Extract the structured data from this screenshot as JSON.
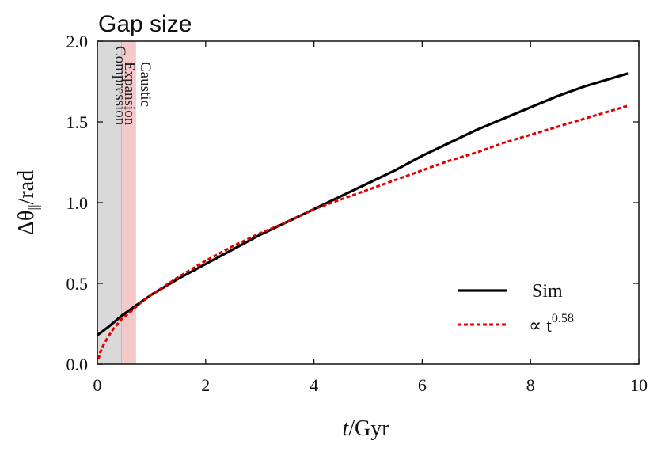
{
  "chart_data": {
    "type": "line",
    "title": "Gap size",
    "xlabel_var": "t",
    "xlabel_unit": "/Gyr",
    "ylabel_prefix": "Δθ",
    "ylabel_sub": "||",
    "ylabel_unit": "/rad",
    "xlim": [
      0,
      10
    ],
    "ylim": [
      0,
      2
    ],
    "xticks": [
      "0",
      "2",
      "4",
      "6",
      "8",
      "10"
    ],
    "yticks": [
      "0.0",
      "0.5",
      "1.0",
      "1.5",
      "2.0"
    ],
    "regions": [
      {
        "name": "Compression",
        "x0": 0.0,
        "x1": 0.45,
        "color": "#d9d9d9"
      },
      {
        "name": "Expansion",
        "x0": 0.45,
        "x1": 0.7,
        "color": "#f4c9c9"
      },
      {
        "name": "Caustic",
        "x0": 0.7,
        "x1": 0.7,
        "color": "#f4c9c9"
      }
    ],
    "series": [
      {
        "name": "Sim",
        "style": "solid",
        "color": "#000000",
        "x": [
          0.0,
          0.2,
          0.45,
          0.7,
          1.0,
          1.5,
          2.0,
          2.5,
          3.0,
          3.5,
          4.0,
          4.5,
          5.0,
          5.5,
          6.0,
          6.5,
          7.0,
          7.5,
          8.0,
          8.5,
          9.0,
          9.5,
          9.8
        ],
        "y": [
          0.18,
          0.23,
          0.3,
          0.36,
          0.43,
          0.53,
          0.62,
          0.71,
          0.8,
          0.88,
          0.96,
          1.04,
          1.12,
          1.2,
          1.29,
          1.37,
          1.45,
          1.52,
          1.59,
          1.66,
          1.72,
          1.77,
          1.8
        ]
      },
      {
        "name": "∝ t",
        "exponent": "0.58",
        "style": "dashed",
        "color": "#e00000",
        "x": [
          0.02,
          0.05,
          0.1,
          0.2,
          0.3,
          0.45,
          0.6,
          0.8,
          1.0,
          1.5,
          2.0,
          2.5,
          3.0,
          3.5,
          4.0,
          4.5,
          5.0,
          5.5,
          6.0,
          6.5,
          7.0,
          7.5,
          8.0,
          8.5,
          9.0,
          9.5,
          9.8
        ],
        "y": [
          0.03,
          0.07,
          0.11,
          0.17,
          0.22,
          0.28,
          0.32,
          0.38,
          0.43,
          0.54,
          0.64,
          0.73,
          0.81,
          0.88,
          0.96,
          1.02,
          1.08,
          1.14,
          1.2,
          1.26,
          1.31,
          1.37,
          1.42,
          1.47,
          1.52,
          1.57,
          1.6
        ]
      }
    ],
    "legend": {
      "placement": "lower-right"
    }
  }
}
